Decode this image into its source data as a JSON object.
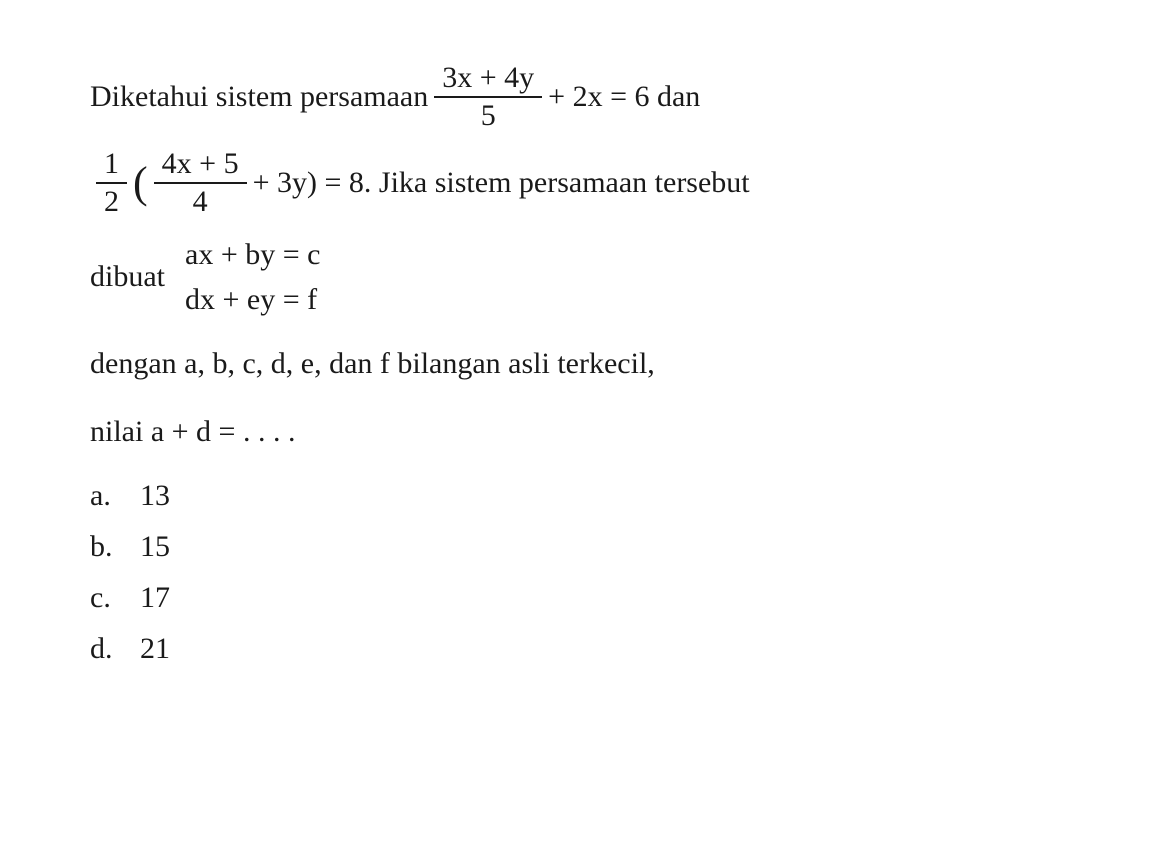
{
  "question": {
    "intro_prefix": "Diketahui sistem persamaan",
    "frac1_num": "3x + 4y",
    "frac1_den": "5",
    "eq1_suffix": " + 2x = 6 dan",
    "frac2a_num": "1",
    "frac2a_den": "2",
    "lparen": "(",
    "frac2b_num": "4x + 5",
    "frac2b_den": "4",
    "eq2_mid": " + 3y) = 8. Jika sistem persamaan tersebut",
    "dibuat_label": "dibuat",
    "sys_eq1": "ax + by = c",
    "sys_eq2": "dx + ey = f",
    "meta1": "dengan a, b, c, d, e, dan f bilangan asli terkecil,",
    "meta2": "nilai a + d = . . . .",
    "options": [
      {
        "label": "a.",
        "value": "13"
      },
      {
        "label": "b.",
        "value": "15"
      },
      {
        "label": "c.",
        "value": "17"
      },
      {
        "label": "d.",
        "value": "21"
      }
    ]
  },
  "style": {
    "text_color": "#1a1a1a",
    "background_color": "#ffffff",
    "font_size_pt": 22,
    "font_family": "Times New Roman"
  }
}
